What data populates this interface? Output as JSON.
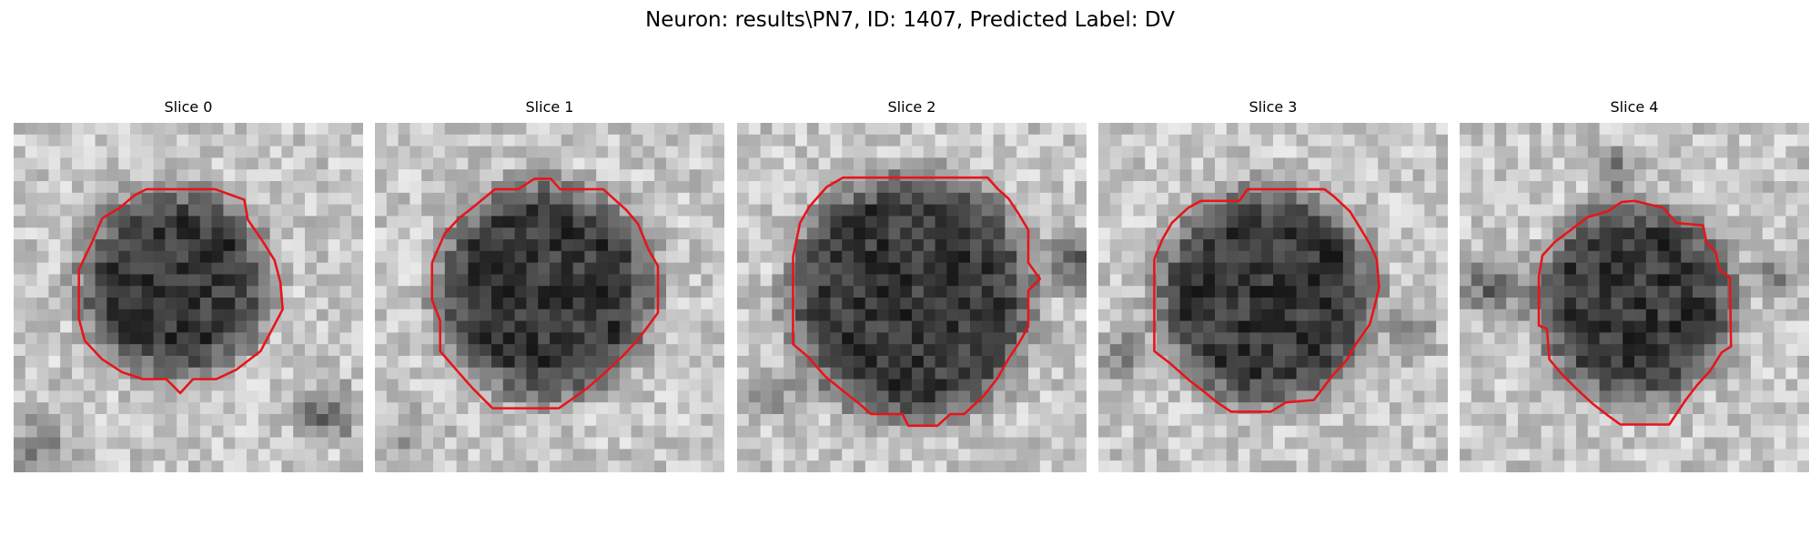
{
  "figure": {
    "title": "Neuron: results\\PN7, ID: 1407, Predicted Label: DV",
    "outline_color": "#e8141a",
    "slices": [
      {
        "title": "Slice 0"
      },
      {
        "title": "Slice 1"
      },
      {
        "title": "Slice 2"
      },
      {
        "title": "Slice 3"
      },
      {
        "title": "Slice 4"
      }
    ]
  }
}
